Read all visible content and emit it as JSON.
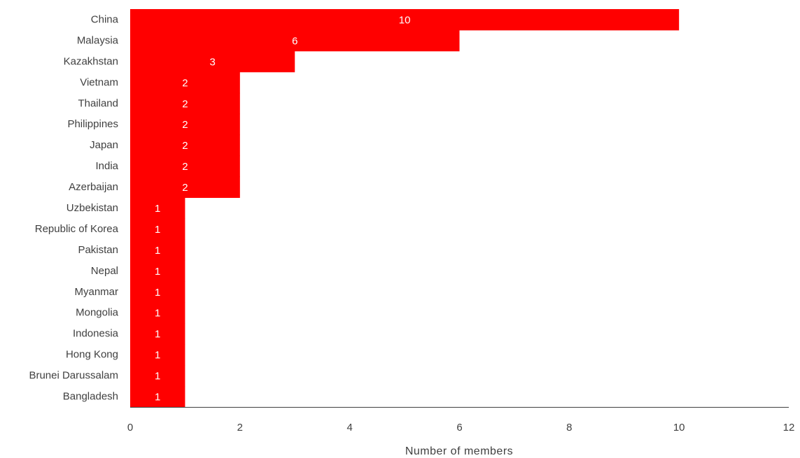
{
  "chart_data": {
    "type": "bar",
    "orientation": "horizontal",
    "categories": [
      "China",
      "Malaysia",
      "Kazakhstan",
      "Vietnam",
      "Thailand",
      "Philippines",
      "Japan",
      "India",
      "Azerbaijan",
      "Uzbekistan",
      "Republic of Korea",
      "Pakistan",
      "Nepal",
      "Myanmar",
      "Mongolia",
      "Indonesia",
      "Hong Kong",
      "Brunei Darussalam",
      "Bangladesh"
    ],
    "values": [
      10,
      6,
      3,
      2,
      2,
      2,
      2,
      2,
      2,
      1,
      1,
      1,
      1,
      1,
      1,
      1,
      1,
      1,
      1
    ],
    "xlabel": "Number of members",
    "ylabel": "",
    "xlim": [
      0,
      12
    ],
    "xticks": [
      0,
      2,
      4,
      6,
      8,
      10,
      12
    ],
    "grid": false,
    "data_labels": true,
    "bar_color": "#ff0000"
  }
}
